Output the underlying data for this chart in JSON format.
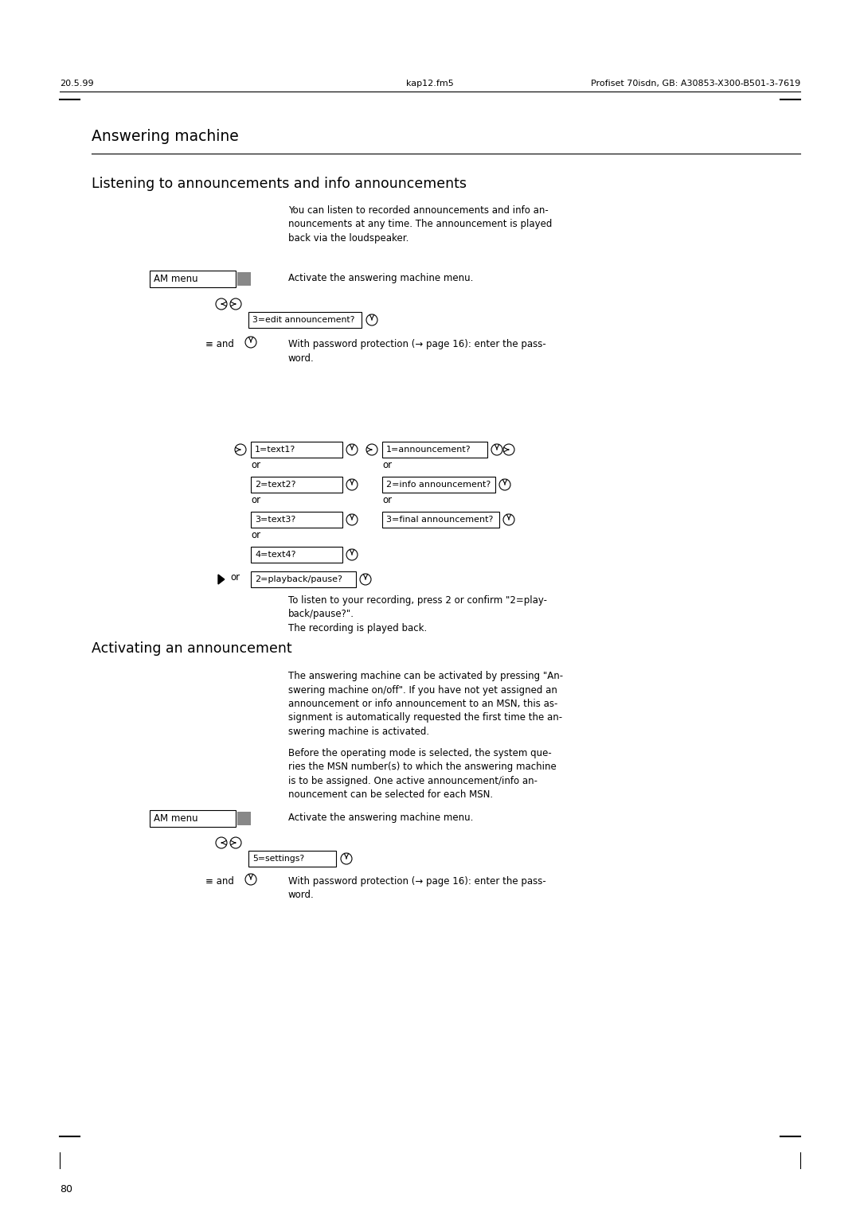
{
  "bg_color": "#ffffff",
  "text_color": "#000000",
  "header_left": "20.5.99",
  "header_center": "kap12.fm5",
  "header_right": "Profiset 70isdn, GB: A30853-X300-B501-3-7619",
  "section_title": "Answering machine",
  "subsection1": "Listening to announcements and info announcements",
  "subsection2": "Activating an announcement",
  "footer_page": "80",
  "para1": "You can listen to recorded announcements and info an-\nnouncements at any time. The announcement is played\nback via the loudspeaker.",
  "para_activate1": "Activate the answering machine menu.",
  "para_password1": "With password protection (→ page 16): enter the pass-\nword.",
  "para_playback": "To listen to your recording, press 2 or confirm \"2=play-\nback/pause?\".\nThe recording is played back.",
  "para_activating1": "The answering machine can be activated by pressing \"An-\nswering machine on/off\". If you have not yet assigned an\nannouncement or info announcement to an MSN, this as-\nsignment is automatically requested the first time the an-\nswering machine is activated.",
  "para_activating2": "Before the operating mode is selected, the system que-\nries the MSN number(s) to which the answering machine\nis to be assigned. One active announcement/info an-\nnouncement can be selected for each MSN.",
  "para_activate2": "Activate the answering machine menu.",
  "para_password2": "With password protection (→ page 16): enter the pass-\nword."
}
